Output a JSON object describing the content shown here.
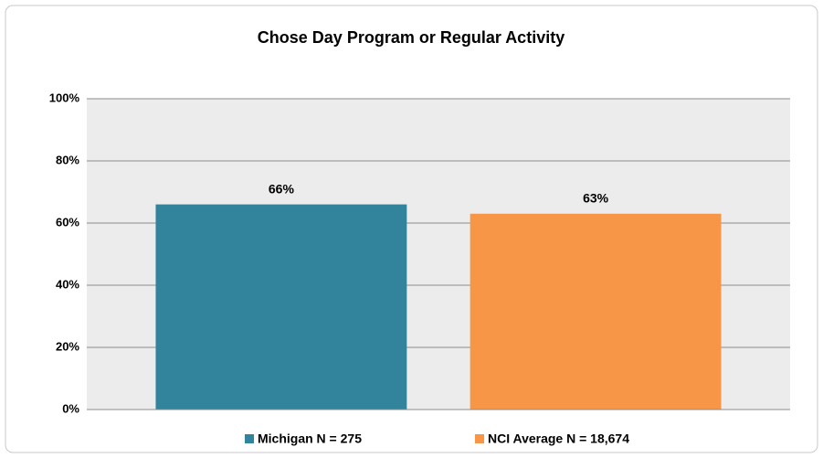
{
  "chart_data": {
    "type": "bar",
    "title": "Chose Day Program or Regular Activity",
    "categories": [
      null
    ],
    "series": [
      {
        "name": "Michigan N = 275",
        "color": "#31849b",
        "values": [
          66
        ],
        "value_labels": [
          "66%"
        ]
      },
      {
        "name": "NCI Average N = 18,674",
        "color": "#f79646",
        "values": [
          63
        ],
        "value_labels": [
          "63%"
        ]
      }
    ],
    "ylim": [
      0,
      100
    ],
    "yticks": [
      {
        "value": 0,
        "label": "0%"
      },
      {
        "value": 20,
        "label": "20%"
      },
      {
        "value": 40,
        "label": "40%"
      },
      {
        "value": 60,
        "label": "60%"
      },
      {
        "value": 80,
        "label": "80%"
      },
      {
        "value": 100,
        "label": "100%"
      }
    ],
    "grid": true,
    "legend": "bottom"
  }
}
